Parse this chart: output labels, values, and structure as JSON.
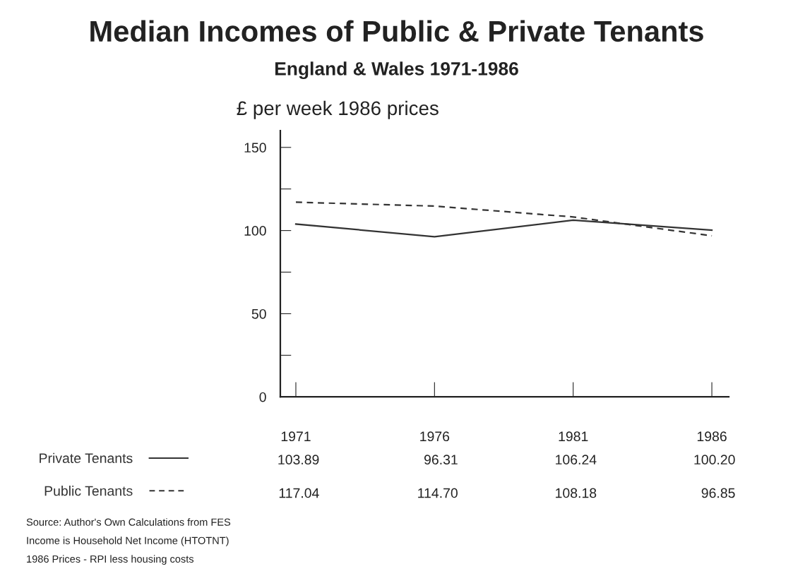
{
  "chart_data": {
    "type": "line",
    "title": "Median Incomes of Public & Private Tenants",
    "subtitle": "England & Wales 1971-1986",
    "ylabel": "£ per week 1986 prices",
    "categories": [
      "1971",
      "1976",
      "1981",
      "1986"
    ],
    "series": [
      {
        "name": "Private Tenants",
        "color": "#333333",
        "line_style": "solid",
        "values": [
          103.89,
          96.31,
          106.24,
          100.2
        ],
        "value_labels": [
          "103.89",
          "96.31",
          "106.24",
          "100.20"
        ]
      },
      {
        "name": "Public Tenants",
        "color": "#333333",
        "line_style": "dashed",
        "values": [
          117.04,
          114.7,
          108.18,
          96.85
        ],
        "value_labels": [
          "117.04",
          "114.70",
          "108.18",
          "96.85"
        ]
      }
    ],
    "ylim": [
      0,
      160
    ],
    "yticks": [
      0,
      {
        "value": 25,
        "label": null
      },
      50,
      {
        "value": 75,
        "label": null
      },
      100,
      {
        "value": 125,
        "label": null
      },
      150
    ],
    "grid": false,
    "legend": "bottom left",
    "marker": "none",
    "data_labels": true,
    "annotations": [
      "Source: Author's Own Calculations from FES",
      "Income is Household Net Income (HTOTNT)",
      "1986 Prices - RPI less housing costs"
    ]
  }
}
